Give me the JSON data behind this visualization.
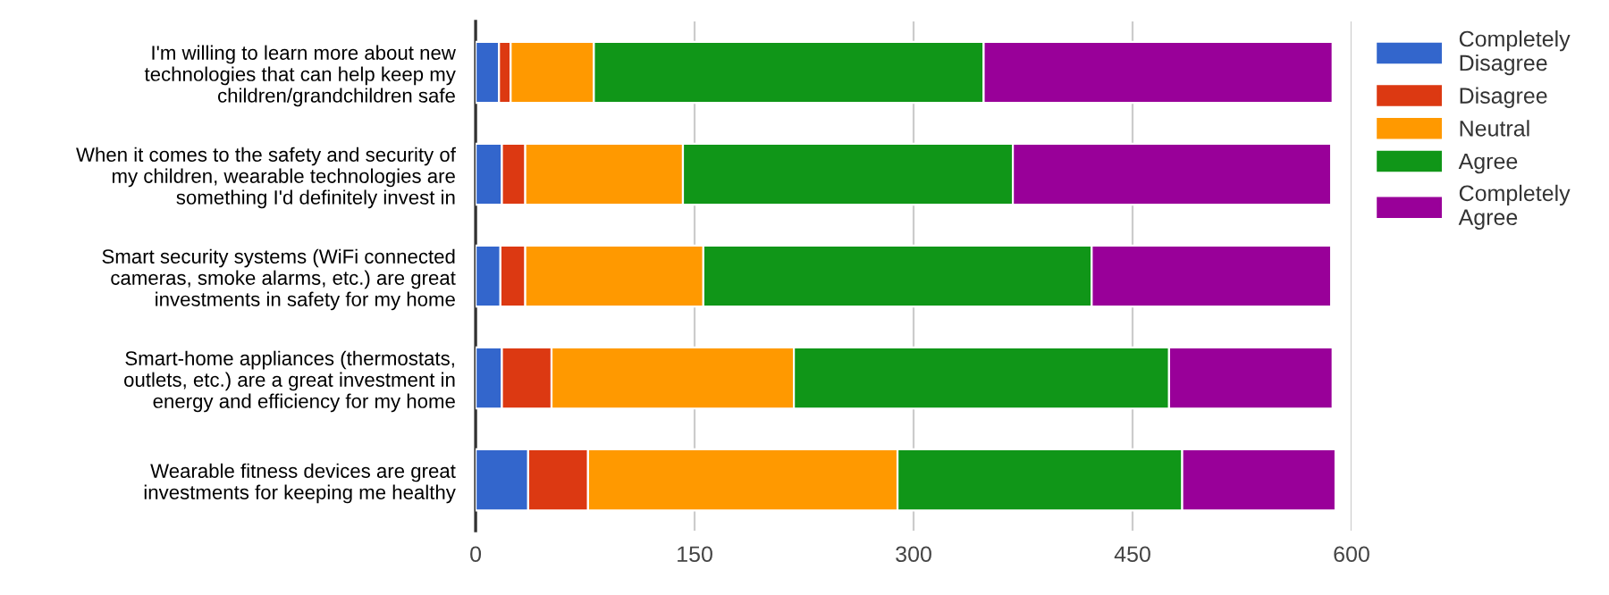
{
  "chart_data": {
    "type": "bar",
    "orientation": "horizontal",
    "stacked": true,
    "categories": [
      "I'm willing to learn more about new\ntechnologies that can help keep my\nchildren/grandchildren safe",
      "When it comes to the safety and security of\nmy children, wearable technologies are\nsomething I'd definitely invest in",
      "Smart security systems (WiFi connected\ncameras, smoke alarms, etc.) are great\ninvestments in safety for my home",
      "Smart-home appliances (thermostats,\noutlets, etc.) are a great investment in\nenergy and efficiency for my home",
      "Wearable fitness devices are great\ninvestments for keeping me healthy"
    ],
    "series": [
      {
        "name": "Completely\nDisagree",
        "color": "#3366cc",
        "values": [
          16,
          18,
          17,
          18,
          36
        ]
      },
      {
        "name": "Disagree",
        "color": "#dc3912",
        "values": [
          8,
          16,
          17,
          34,
          41
        ]
      },
      {
        "name": "Neutral",
        "color": "#ff9900",
        "values": [
          57,
          108,
          122,
          166,
          212
        ]
      },
      {
        "name": "Agree",
        "color": "#109618",
        "values": [
          267,
          226,
          266,
          257,
          195
        ]
      },
      {
        "name": "Completely\nAgree",
        "color": "#990099",
        "values": [
          239,
          218,
          164,
          112,
          105
        ]
      }
    ],
    "xlim": [
      0,
      600
    ],
    "xticks": [
      0,
      150,
      300,
      450,
      600
    ],
    "grid": "x",
    "legend": "top right"
  }
}
